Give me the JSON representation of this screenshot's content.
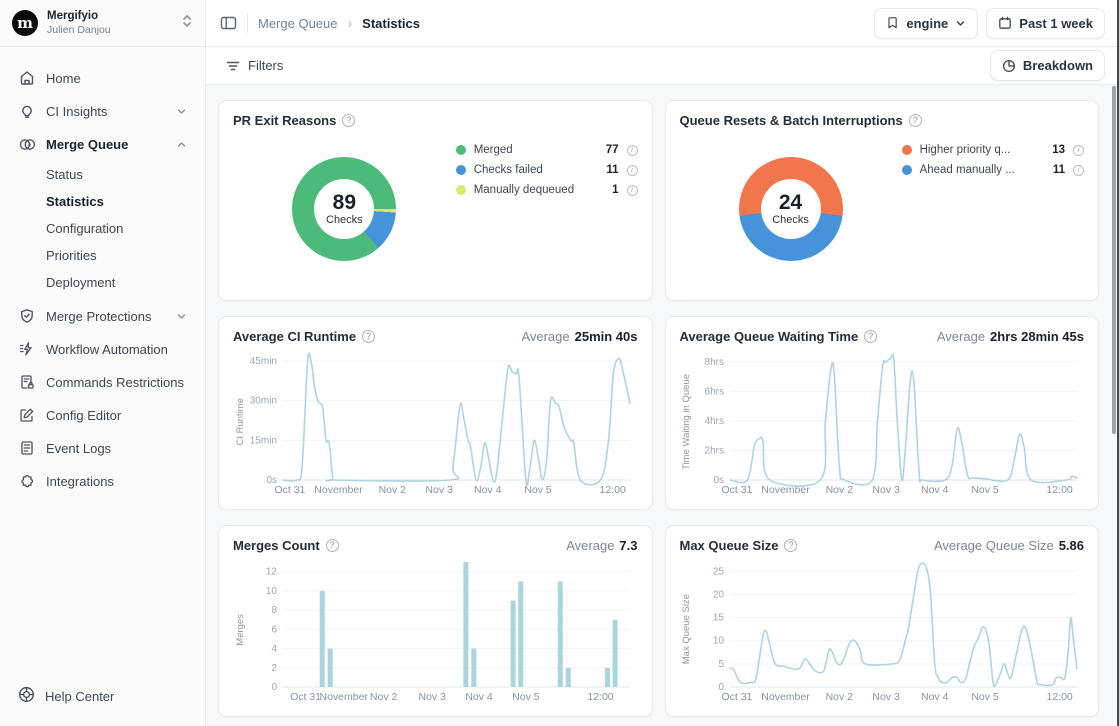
{
  "sidebar": {
    "org": {
      "name": "Mergifyio",
      "user": "Julien Danjou",
      "logo_letter": "m"
    },
    "items": [
      {
        "label": "Home"
      },
      {
        "label": "CI Insights"
      },
      {
        "label": "Merge Queue",
        "children": [
          {
            "label": "Status"
          },
          {
            "label": "Statistics",
            "active": true
          },
          {
            "label": "Configuration"
          },
          {
            "label": "Priorities"
          },
          {
            "label": "Deployment"
          }
        ]
      },
      {
        "label": "Merge Protections"
      },
      {
        "label": "Workflow Automation"
      },
      {
        "label": "Commands Restrictions"
      },
      {
        "label": "Config Editor"
      },
      {
        "label": "Event Logs"
      },
      {
        "label": "Integrations"
      }
    ],
    "help": {
      "label": "Help Center"
    }
  },
  "topbar": {
    "breadcrumb": {
      "parent": "Merge Queue",
      "current": "Statistics"
    },
    "engine_select": {
      "value": "engine"
    },
    "period_button": {
      "label": "Past 1 week"
    }
  },
  "filterbar": {
    "filters_label": "Filters",
    "breakdown_label": "Breakdown"
  },
  "chart_data": {
    "pr_exit_reasons": {
      "type": "donut",
      "title": "PR Exit Reasons",
      "center": {
        "value": "89",
        "label": "Checks"
      },
      "start_deg": 138.5,
      "arc_order": [
        0,
        2,
        1
      ],
      "segments": [
        {
          "label": "Merged",
          "value": 77,
          "color": "#4cbb7a"
        },
        {
          "label": "Checks failed",
          "value": 11,
          "color": "#4793d9"
        },
        {
          "label": "Manually dequeued",
          "value": 1,
          "color": "#dae96a"
        }
      ]
    },
    "queue_resets": {
      "type": "donut",
      "title": "Queue Resets & Batch Interruptions",
      "center": {
        "value": "24",
        "label": "Checks"
      },
      "start_deg": 262.5,
      "arc_order": [
        0,
        1
      ],
      "segments": [
        {
          "label": "Higher priority q...",
          "value": 13,
          "color": "#f1764b"
        },
        {
          "label": "Ahead manually ...",
          "value": 11,
          "color": "#4793d9"
        }
      ]
    },
    "ci_runtime": {
      "type": "line",
      "title": "Average CI Runtime",
      "average_label": "Average",
      "average_value": "25min 40s",
      "ylabel": "CI Runtime",
      "color": "#afd3e2",
      "ymax": 48,
      "y_ticks": [
        {
          "label": "45min",
          "v": 45
        },
        {
          "label": "30min",
          "v": 30
        },
        {
          "label": "15min",
          "v": 15
        },
        {
          "label": "0s",
          "v": 0
        }
      ],
      "x_ticks": [
        {
          "label": "Oct 31",
          "f": 0.02
        },
        {
          "label": "November",
          "f": 0.16
        },
        {
          "label": "Nov 2",
          "f": 0.315
        },
        {
          "label": "Nov 3",
          "f": 0.45
        },
        {
          "label": "Nov 4",
          "f": 0.59
        },
        {
          "label": "Nov 5",
          "f": 0.735
        },
        {
          "label": "12:00",
          "f": 0.95
        }
      ],
      "points": [
        [
          0,
          0
        ],
        [
          0.04,
          0
        ],
        [
          0.055,
          5
        ],
        [
          0.071,
          45
        ],
        [
          0.082,
          44
        ],
        [
          0.09,
          36
        ],
        [
          0.1,
          30
        ],
        [
          0.107,
          29
        ],
        [
          0.115,
          27
        ],
        [
          0.124,
          15
        ],
        [
          0.133,
          14
        ],
        [
          0.143,
          1
        ],
        [
          0.15,
          0
        ],
        [
          0.48,
          0
        ],
        [
          0.49,
          5
        ],
        [
          0.51,
          28
        ],
        [
          0.52,
          24
        ],
        [
          0.533,
          15
        ],
        [
          0.54,
          13
        ],
        [
          0.556,
          0
        ],
        [
          0.57,
          5
        ],
        [
          0.581,
          14
        ],
        [
          0.59,
          10
        ],
        [
          0.605,
          0
        ],
        [
          0.615,
          2
        ],
        [
          0.63,
          20
        ],
        [
          0.648,
          42
        ],
        [
          0.66,
          41
        ],
        [
          0.672,
          40
        ],
        [
          0.68,
          39
        ],
        [
          0.7,
          0
        ],
        [
          0.712,
          5
        ],
        [
          0.724,
          15
        ],
        [
          0.736,
          8
        ],
        [
          0.748,
          0
        ],
        [
          0.76,
          8
        ],
        [
          0.771,
          30
        ],
        [
          0.785,
          29
        ],
        [
          0.795,
          28
        ],
        [
          0.81,
          20
        ],
        [
          0.829,
          15
        ],
        [
          0.838,
          14
        ],
        [
          0.857,
          0
        ],
        [
          0.915,
          0
        ],
        [
          0.938,
          15
        ],
        [
          0.952,
          40
        ],
        [
          0.967,
          46
        ],
        [
          0.978,
          42
        ],
        [
          1,
          29
        ]
      ]
    },
    "queue_waiting_time": {
      "type": "line",
      "title": "Average Queue Waiting Time",
      "average_label": "Average",
      "average_value": "2hrs 28min 45s",
      "ylabel": "Time Waiting in Queue",
      "color": "#afd3e2",
      "ymax": 8.6,
      "y_ticks": [
        {
          "label": "8hrs",
          "v": 8
        },
        {
          "label": "6hrs",
          "v": 6
        },
        {
          "label": "4hrs",
          "v": 4
        },
        {
          "label": "2hrs",
          "v": 2
        },
        {
          "label": "0s",
          "v": 0
        }
      ],
      "x_ticks": [
        {
          "label": "Oct 31",
          "f": 0.02
        },
        {
          "label": "November",
          "f": 0.16
        },
        {
          "label": "Nov 2",
          "f": 0.315
        },
        {
          "label": "Nov 3",
          "f": 0.45
        },
        {
          "label": "Nov 4",
          "f": 0.59
        },
        {
          "label": "Nov 5",
          "f": 0.735
        },
        {
          "label": "12:00",
          "f": 0.95
        }
      ],
      "points": [
        [
          0,
          0
        ],
        [
          0.05,
          0
        ],
        [
          0.07,
          2.3
        ],
        [
          0.085,
          2.8
        ],
        [
          0.095,
          2.6
        ],
        [
          0.115,
          0
        ],
        [
          0.26,
          0
        ],
        [
          0.275,
          4
        ],
        [
          0.29,
          7.4
        ],
        [
          0.3,
          7.3
        ],
        [
          0.315,
          1
        ],
        [
          0.33,
          0
        ],
        [
          0.41,
          0
        ],
        [
          0.425,
          4
        ],
        [
          0.44,
          7.7
        ],
        [
          0.45,
          8
        ],
        [
          0.462,
          8.2
        ],
        [
          0.472,
          8.2
        ],
        [
          0.482,
          4
        ],
        [
          0.495,
          0
        ],
        [
          0.505,
          2
        ],
        [
          0.52,
          6.8
        ],
        [
          0.53,
          6.6
        ],
        [
          0.545,
          0.5
        ],
        [
          0.556,
          0
        ],
        [
          0.62,
          0
        ],
        [
          0.64,
          1
        ],
        [
          0.655,
          3.5
        ],
        [
          0.668,
          2.5
        ],
        [
          0.685,
          0.3
        ],
        [
          0.7,
          0.15
        ],
        [
          0.73,
          0.1
        ],
        [
          0.8,
          0
        ],
        [
          0.82,
          1.5
        ],
        [
          0.835,
          3.1
        ],
        [
          0.848,
          2.2
        ],
        [
          0.868,
          0
        ],
        [
          0.97,
          0
        ],
        [
          0.985,
          0.25
        ],
        [
          1,
          0.15
        ]
      ]
    },
    "merges_count": {
      "type": "bar",
      "title": "Merges Count",
      "average_label": "Average",
      "average_value": "7.3",
      "ylabel": "Merges",
      "color": "#a9d5dc",
      "ymax": 13,
      "y_ticks": [
        {
          "label": "12",
          "v": 12
        },
        {
          "label": "10",
          "v": 10
        },
        {
          "label": "8",
          "v": 8
        },
        {
          "label": "6",
          "v": 6
        },
        {
          "label": "4",
          "v": 4
        },
        {
          "label": "2",
          "v": 2
        },
        {
          "label": "0",
          "v": 0
        }
      ],
      "x_ticks": [
        {
          "label": "Oct 31",
          "f": 0.065
        },
        {
          "label": "November",
          "f": 0.175
        },
        {
          "label": "Nov 2",
          "f": 0.29
        },
        {
          "label": "Nov 3",
          "f": 0.43
        },
        {
          "label": "Nov 4",
          "f": 0.565
        },
        {
          "label": "Nov 5",
          "f": 0.7
        },
        {
          "label": "12:00",
          "f": 0.915
        }
      ],
      "bars": [
        [
          0.113,
          10
        ],
        [
          0.136,
          4
        ],
        [
          0.527,
          13
        ],
        [
          0.55,
          4
        ],
        [
          0.663,
          9
        ],
        [
          0.685,
          11
        ],
        [
          0.799,
          11
        ],
        [
          0.822,
          2
        ],
        [
          0.935,
          2
        ],
        [
          0.957,
          7
        ]
      ]
    },
    "max_queue_size": {
      "type": "line",
      "title": "Max Queue Size",
      "average_label": "Average Queue Size",
      "average_value": "5.86",
      "ylabel": "Max Queue Size",
      "color": "#afd3e2",
      "ymax": 27,
      "y_ticks": [
        {
          "label": "25",
          "v": 25
        },
        {
          "label": "20",
          "v": 20
        },
        {
          "label": "15",
          "v": 15
        },
        {
          "label": "10",
          "v": 10
        },
        {
          "label": "5",
          "v": 5
        },
        {
          "label": "0",
          "v": 0
        }
      ],
      "x_ticks": [
        {
          "label": "Oct 31",
          "f": 0.02
        },
        {
          "label": "November",
          "f": 0.16
        },
        {
          "label": "Nov 2",
          "f": 0.315
        },
        {
          "label": "Nov 3",
          "f": 0.45
        },
        {
          "label": "Nov 4",
          "f": 0.59
        },
        {
          "label": "Nov 5",
          "f": 0.735
        },
        {
          "label": "12:00",
          "f": 0.95
        }
      ],
      "points": [
        [
          0,
          4
        ],
        [
          0.01,
          3.8
        ],
        [
          0.03,
          1
        ],
        [
          0.06,
          1
        ],
        [
          0.075,
          2
        ],
        [
          0.095,
          11
        ],
        [
          0.105,
          12
        ],
        [
          0.115,
          9
        ],
        [
          0.13,
          5
        ],
        [
          0.155,
          4.5
        ],
        [
          0.175,
          4
        ],
        [
          0.2,
          4
        ],
        [
          0.215,
          6
        ],
        [
          0.225,
          5.5
        ],
        [
          0.245,
          3.5
        ],
        [
          0.27,
          3.5
        ],
        [
          0.285,
          8
        ],
        [
          0.295,
          7.5
        ],
        [
          0.31,
          5
        ],
        [
          0.325,
          5.5
        ],
        [
          0.345,
          9.5
        ],
        [
          0.36,
          10
        ],
        [
          0.375,
          8
        ],
        [
          0.39,
          5
        ],
        [
          0.47,
          5
        ],
        [
          0.49,
          6
        ],
        [
          0.505,
          10
        ],
        [
          0.515,
          13
        ],
        [
          0.53,
          20
        ],
        [
          0.545,
          26
        ],
        [
          0.565,
          26
        ],
        [
          0.578,
          20
        ],
        [
          0.59,
          5
        ],
        [
          0.6,
          2
        ],
        [
          0.61,
          1
        ],
        [
          0.625,
          1
        ],
        [
          0.64,
          2
        ],
        [
          0.655,
          2
        ],
        [
          0.665,
          1
        ],
        [
          0.68,
          2
        ],
        [
          0.7,
          8
        ],
        [
          0.715,
          10.5
        ],
        [
          0.73,
          13
        ],
        [
          0.745,
          10
        ],
        [
          0.758,
          1
        ],
        [
          0.765,
          0.5
        ],
        [
          0.78,
          3
        ],
        [
          0.79,
          5
        ],
        [
          0.8,
          3
        ],
        [
          0.81,
          2
        ],
        [
          0.825,
          7
        ],
        [
          0.84,
          12
        ],
        [
          0.85,
          13
        ],
        [
          0.862,
          10
        ],
        [
          0.875,
          5
        ],
        [
          0.885,
          1
        ],
        [
          0.895,
          0.5
        ],
        [
          0.93,
          0.5
        ],
        [
          0.94,
          2
        ],
        [
          0.955,
          2
        ],
        [
          0.965,
          2
        ],
        [
          0.975,
          8
        ],
        [
          0.982,
          15
        ],
        [
          0.99,
          10
        ],
        [
          1,
          4
        ]
      ]
    }
  }
}
